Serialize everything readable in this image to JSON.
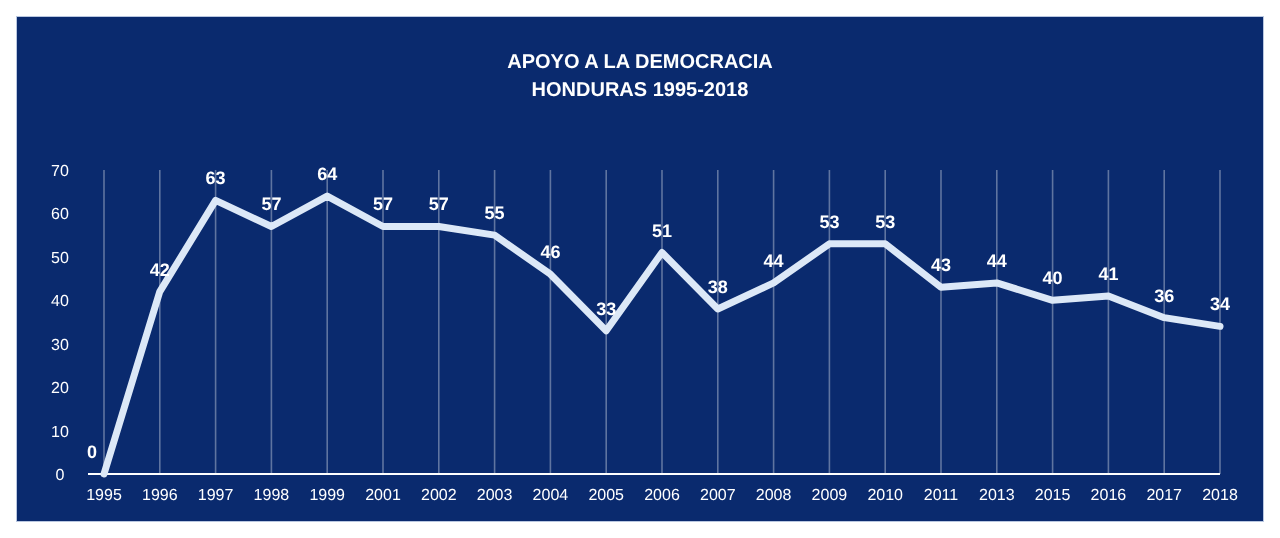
{
  "chart_data": {
    "type": "line",
    "title": "APOYO A LA DEMOCRACIA",
    "subtitle": "HONDURAS 1995-2018",
    "categories": [
      "1995",
      "1996",
      "1997",
      "1998",
      "1999",
      "2001",
      "2002",
      "2003",
      "2004",
      "2005",
      "2006",
      "2007",
      "2008",
      "2009",
      "2010",
      "2011",
      "2013",
      "2015",
      "2016",
      "2017",
      "2018"
    ],
    "series": [
      {
        "color": "#dce8f7",
        "values": [
          0,
          42,
          63,
          57,
          64,
          57,
          57,
          55,
          46,
          33,
          51,
          38,
          44,
          53,
          53,
          43,
          44,
          40,
          41,
          36,
          34
        ]
      }
    ],
    "ylim": [
      0,
      70
    ],
    "yticks": [
      0,
      10,
      20,
      30,
      40,
      50,
      60,
      70
    ],
    "grid": "x",
    "data_labels": true,
    "marker": "none",
    "line_style": "solid"
  }
}
